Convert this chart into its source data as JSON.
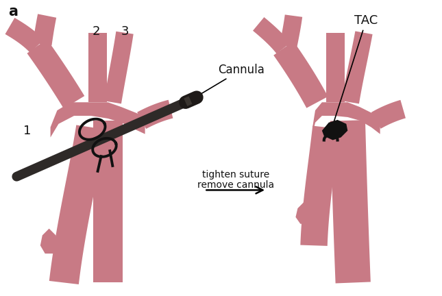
{
  "bg_color": "#ffffff",
  "aorta_color": "#c87a85",
  "cannula_color": "#2e2a28",
  "suture_color": "#111111",
  "text_color": "#111111",
  "label_a": "a",
  "label_1": "1",
  "label_2": "2",
  "label_3": "3",
  "label_cannula": "Cannula",
  "label_tac": "TAC",
  "label_arrow_text1": "tighten suture",
  "label_arrow_text2": "remove cannula",
  "figsize": [
    6.45,
    4.32
  ],
  "dpi": 100
}
